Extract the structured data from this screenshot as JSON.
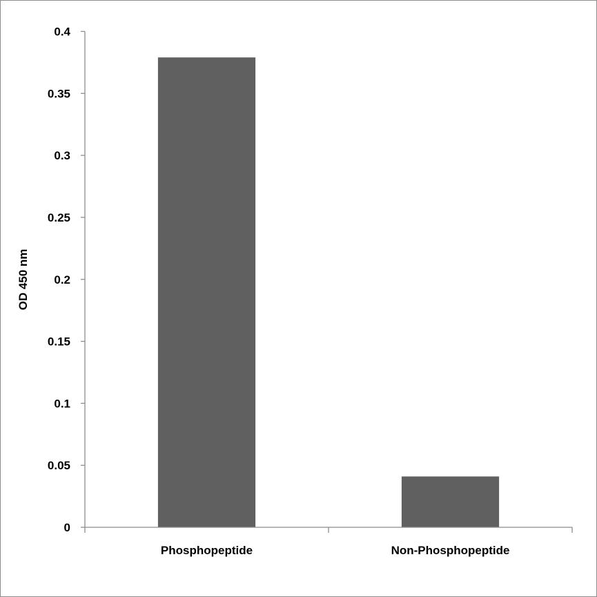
{
  "chart_data": {
    "type": "bar",
    "title": "",
    "xlabel": "",
    "ylabel": "OD 450 nm",
    "categories": [
      "Phosphopeptide",
      "Non-Phosphopeptide"
    ],
    "values": [
      0.379,
      0.041
    ],
    "ylim": [
      0,
      0.4
    ],
    "yticks": [
      "0",
      "0.05",
      "0.1",
      "0.15",
      "0.2",
      "0.25",
      "0.3",
      "0.35",
      "0.4"
    ],
    "grid": false,
    "legend": "none",
    "bar_color": "#606060",
    "axis_color": "#8c8c8c"
  }
}
